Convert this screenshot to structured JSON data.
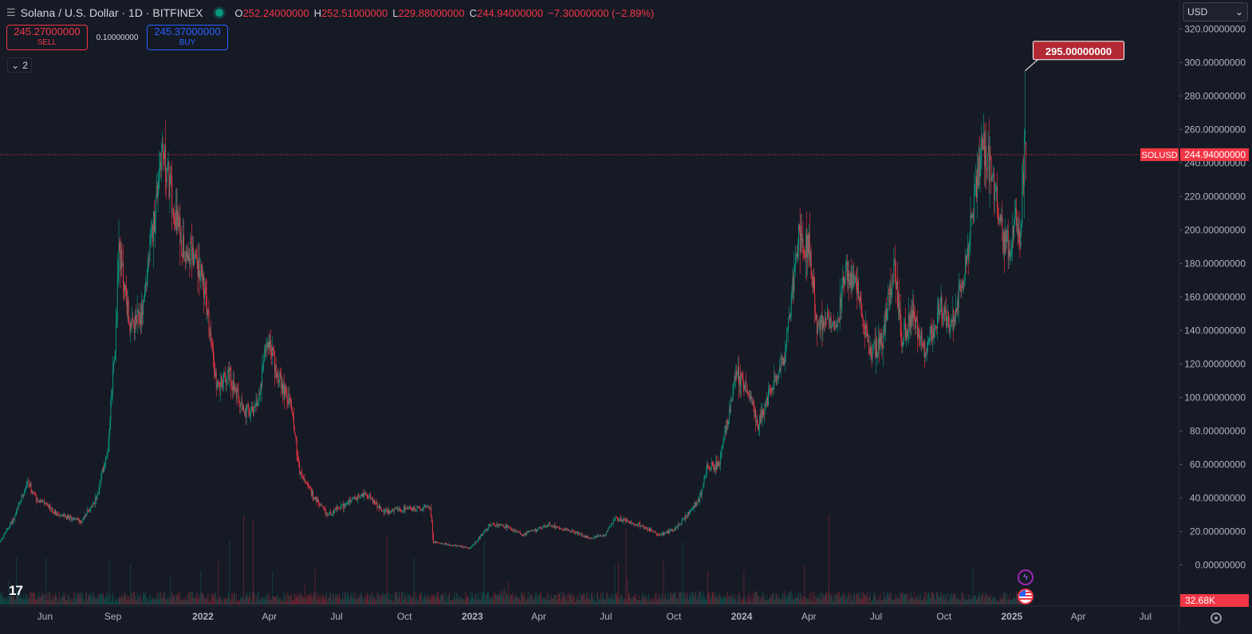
{
  "header": {
    "symbol": "Solana / U.S. Dollar · 1D · BITFINEX",
    "open_key": "O",
    "open": "252.24000000",
    "high_key": "H",
    "high": "252.51000000",
    "low_key": "L",
    "low": "229.88000000",
    "close_key": "C",
    "close": "244.94000000",
    "change": "−7.30000000 (−2.89%)"
  },
  "trade": {
    "sell_price": "245.27000000",
    "sell_label": "SELL",
    "spread": "0.10000000",
    "buy_price": "245.37000000",
    "buy_label": "BUY"
  },
  "collapse_count": "2",
  "currency": {
    "selected": "USD"
  },
  "chart_data": {
    "type": "candlestick",
    "symbol": "SOLUSD",
    "interval": "1D",
    "exchange": "BITFINEX",
    "y_axis": {
      "ticks": [
        0,
        20,
        40,
        60,
        80,
        100,
        120,
        140,
        160,
        180,
        200,
        220,
        240,
        260,
        280,
        300,
        320
      ],
      "tick_labels": [
        "0.00000000",
        "20.00000000",
        "40.00000000",
        "60.00000000",
        "80.00000000",
        "100.00000000",
        "120.00000000",
        "140.00000000",
        "160.00000000",
        "180.00000000",
        "200.00000000",
        "220.00000000",
        "240.00000000",
        "260.00000000",
        "280.00000000",
        "300.00000000",
        "320.00000000"
      ],
      "range": [
        -16,
        323
      ]
    },
    "x_axis": {
      "range": [
        "2021-04-01",
        "2025-08-15"
      ],
      "ticks": [
        {
          "date": "2021-06-01",
          "label": "Jun",
          "bold": false
        },
        {
          "date": "2021-09-01",
          "label": "Sep",
          "bold": false
        },
        {
          "date": "2022-01-01",
          "label": "2022",
          "bold": true
        },
        {
          "date": "2022-04-01",
          "label": "Apr",
          "bold": false
        },
        {
          "date": "2022-07-01",
          "label": "Jul",
          "bold": false
        },
        {
          "date": "2022-10-01",
          "label": "Oct",
          "bold": false
        },
        {
          "date": "2023-01-01",
          "label": "2023",
          "bold": true
        },
        {
          "date": "2023-04-01",
          "label": "Apr",
          "bold": false
        },
        {
          "date": "2023-07-01",
          "label": "Jul",
          "bold": false
        },
        {
          "date": "2023-10-01",
          "label": "Oct",
          "bold": false
        },
        {
          "date": "2024-01-01",
          "label": "2024",
          "bold": true
        },
        {
          "date": "2024-04-01",
          "label": "Apr",
          "bold": false
        },
        {
          "date": "2024-07-01",
          "label": "Jul",
          "bold": false
        },
        {
          "date": "2024-10-01",
          "label": "Oct",
          "bold": false
        },
        {
          "date": "2025-01-01",
          "label": "2025",
          "bold": true
        },
        {
          "date": "2025-04-01",
          "label": "Apr",
          "bold": false
        },
        {
          "date": "2025-07-01",
          "label": "Jul",
          "bold": false
        }
      ]
    },
    "price_path": [
      [
        "2021-04-01",
        14
      ],
      [
        "2021-04-20",
        28
      ],
      [
        "2021-05-08",
        50
      ],
      [
        "2021-05-20",
        40
      ],
      [
        "2021-06-01",
        36
      ],
      [
        "2021-06-20",
        30
      ],
      [
        "2021-07-20",
        26
      ],
      [
        "2021-08-10",
        40
      ],
      [
        "2021-08-25",
        70
      ],
      [
        "2021-09-05",
        140
      ],
      [
        "2021-09-09",
        190
      ],
      [
        "2021-09-25",
        140
      ],
      [
        "2021-10-10",
        150
      ],
      [
        "2021-10-25",
        200
      ],
      [
        "2021-11-06",
        250
      ],
      [
        "2021-11-20",
        220
      ],
      [
        "2021-12-05",
        190
      ],
      [
        "2021-12-20",
        185
      ],
      [
        "2022-01-01",
        170
      ],
      [
        "2022-01-20",
        105
      ],
      [
        "2022-02-05",
        115
      ],
      [
        "2022-02-25",
        90
      ],
      [
        "2022-03-15",
        95
      ],
      [
        "2022-03-30",
        135
      ],
      [
        "2022-04-15",
        110
      ],
      [
        "2022-05-01",
        95
      ],
      [
        "2022-05-12",
        55
      ],
      [
        "2022-06-01",
        40
      ],
      [
        "2022-06-18",
        30
      ],
      [
        "2022-07-05",
        34
      ],
      [
        "2022-08-10",
        43
      ],
      [
        "2022-09-01",
        32
      ],
      [
        "2022-10-01",
        33
      ],
      [
        "2022-11-05",
        35
      ],
      [
        "2022-11-09",
        14
      ],
      [
        "2022-11-20",
        13
      ],
      [
        "2022-12-29",
        10
      ],
      [
        "2023-01-12",
        17
      ],
      [
        "2023-01-25",
        24
      ],
      [
        "2023-02-15",
        23
      ],
      [
        "2023-03-10",
        18
      ],
      [
        "2023-04-15",
        24
      ],
      [
        "2023-05-10",
        21
      ],
      [
        "2023-06-10",
        16
      ],
      [
        "2023-06-30",
        18
      ],
      [
        "2023-07-14",
        28
      ],
      [
        "2023-08-15",
        24
      ],
      [
        "2023-09-11",
        18
      ],
      [
        "2023-10-01",
        21
      ],
      [
        "2023-10-20",
        30
      ],
      [
        "2023-11-05",
        40
      ],
      [
        "2023-11-15",
        58
      ],
      [
        "2023-12-01",
        60
      ],
      [
        "2023-12-25",
        115
      ],
      [
        "2024-01-15",
        98
      ],
      [
        "2024-01-23",
        84
      ],
      [
        "2024-02-10",
        105
      ],
      [
        "2024-02-28",
        125
      ],
      [
        "2024-03-18",
        195
      ],
      [
        "2024-04-01",
        190
      ],
      [
        "2024-04-13",
        140
      ],
      [
        "2024-04-25",
        150
      ],
      [
        "2024-05-10",
        145
      ],
      [
        "2024-05-20",
        175
      ],
      [
        "2024-06-05",
        165
      ],
      [
        "2024-06-24",
        125
      ],
      [
        "2024-07-10",
        135
      ],
      [
        "2024-07-25",
        180
      ],
      [
        "2024-08-05",
        135
      ],
      [
        "2024-08-20",
        150
      ],
      [
        "2024-09-06",
        128
      ],
      [
        "2024-09-27",
        155
      ],
      [
        "2024-10-10",
        140
      ],
      [
        "2024-10-29",
        175
      ],
      [
        "2024-11-12",
        220
      ],
      [
        "2024-11-22",
        250
      ],
      [
        "2024-12-05",
        235
      ],
      [
        "2024-12-20",
        195
      ],
      [
        "2024-12-30",
        190
      ],
      [
        "2025-01-06",
        215
      ],
      [
        "2025-01-12",
        185
      ],
      [
        "2025-01-17",
        235
      ],
      [
        "2025-01-19",
        255
      ],
      [
        "2025-01-20",
        245
      ]
    ],
    "last_candle": {
      "date": "2025-01-20",
      "open": 252.24,
      "high": 252.51,
      "low": 229.88,
      "close": 244.94
    },
    "price_line": {
      "label": "SOLUSD",
      "value": 244.94,
      "value_label": "244.94000000",
      "color": "#f23645"
    },
    "high_callout": {
      "value": 295.0,
      "label": "295.00000000",
      "date": "2025-01-19"
    },
    "volume_label": "32.68K",
    "colors": {
      "up": "#089981",
      "down": "#f23645",
      "background": "#161a25",
      "text": "#d1d4dc",
      "axis_text": "#b2b5be",
      "grid": "#1e222d"
    },
    "grid": false,
    "legend": "none"
  }
}
